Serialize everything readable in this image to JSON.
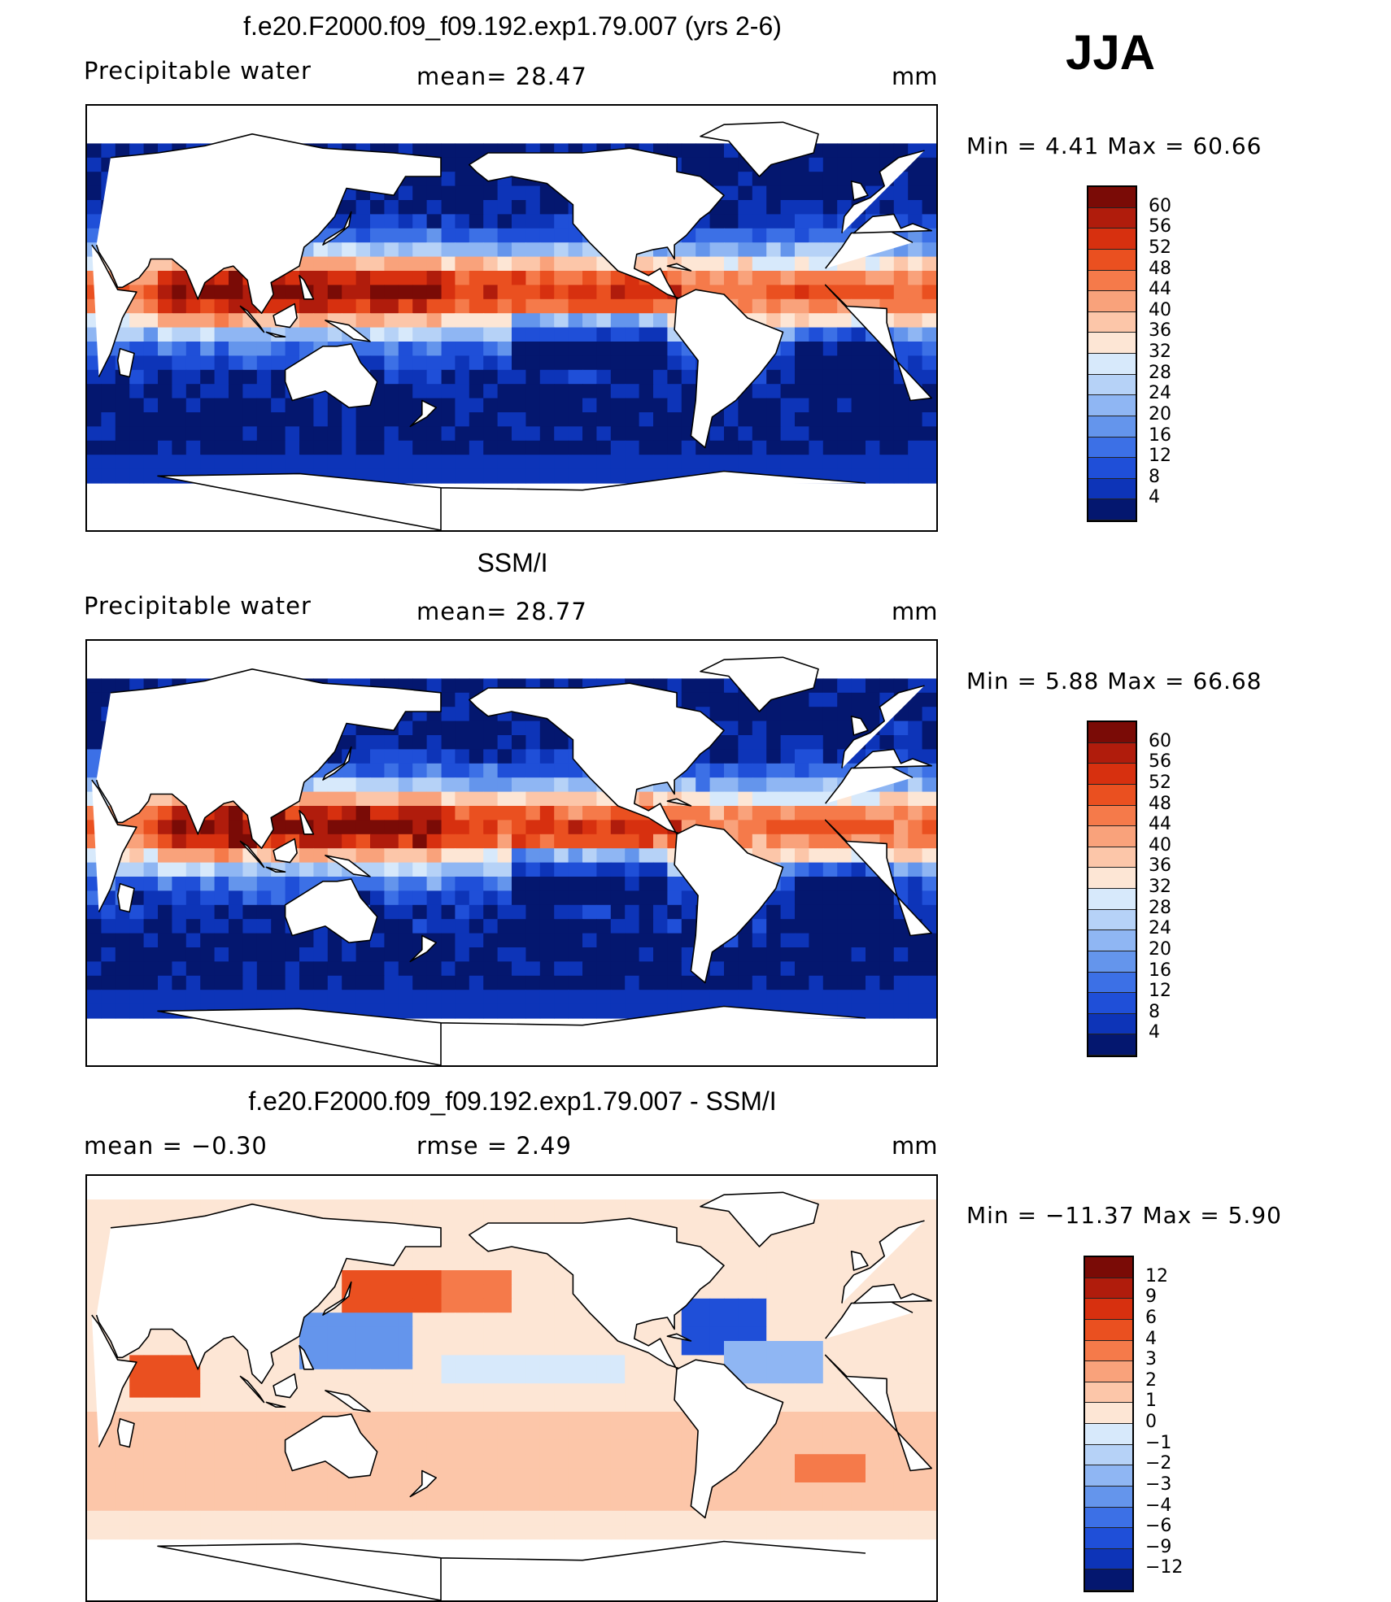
{
  "season": "JJA",
  "panels": [
    {
      "title": "f.e20.F2000.f09_f09.192.exp1.79.007 (yrs 2-6)",
      "left_label": "Precipitable  water",
      "mid_label": "mean=   28.47",
      "unit": "mm",
      "minmax": "Min  =     4.41  Max  =    60.66",
      "colorbar_labels": [
        "60",
        "56",
        "52",
        "48",
        "44",
        "40",
        "36",
        "32",
        "28",
        "24",
        "20",
        "16",
        "12",
        "8",
        "4"
      ],
      "colorbar_colors": [
        "#7a0b06",
        "#b01c0c",
        "#d7300f",
        "#ea5020",
        "#f57a4a",
        "#f9a27b",
        "#fcc6a9",
        "#fde6d5",
        "#d7e9fb",
        "#b6d2f7",
        "#8fb6f3",
        "#6495ec",
        "#3c70e6",
        "#1f4fd8",
        "#0d34b8",
        "#04176f"
      ],
      "field": "model"
    },
    {
      "title": "SSM/I",
      "left_label": "Precipitable  water",
      "mid_label": "mean=   28.77",
      "unit": "mm",
      "minmax": "Min  =     5.88  Max  =    66.68",
      "colorbar_labels": [
        "60",
        "56",
        "52",
        "48",
        "44",
        "40",
        "36",
        "32",
        "28",
        "24",
        "20",
        "16",
        "12",
        "8",
        "4"
      ],
      "colorbar_colors": [
        "#7a0b06",
        "#b01c0c",
        "#d7300f",
        "#ea5020",
        "#f57a4a",
        "#f9a27b",
        "#fcc6a9",
        "#fde6d5",
        "#d7e9fb",
        "#b6d2f7",
        "#8fb6f3",
        "#6495ec",
        "#3c70e6",
        "#1f4fd8",
        "#0d34b8",
        "#04176f"
      ],
      "field": "obs"
    },
    {
      "title": "f.e20.F2000.f09_f09.192.exp1.79.007 - SSM/I",
      "left_label": "mean  =    −0.30",
      "mid_label": "rmse  =     2.49",
      "unit": "mm",
      "minmax": "Min  = −11.37  Max  =     5.90",
      "colorbar_labels": [
        "12",
        "9",
        "6",
        "4",
        "3",
        "2",
        "1",
        "0",
        "−1",
        "−2",
        "−3",
        "−4",
        "−6",
        "−9",
        "−12"
      ],
      "colorbar_colors": [
        "#7a0b06",
        "#b01c0c",
        "#d7300f",
        "#ea5020",
        "#f57a4a",
        "#f9a27b",
        "#fcc6a9",
        "#fde6d5",
        "#d7e9fb",
        "#b6d2f7",
        "#8fb6f3",
        "#6495ec",
        "#3c70e6",
        "#1f4fd8",
        "#0d34b8",
        "#04176f"
      ],
      "field": "diff"
    }
  ]
}
